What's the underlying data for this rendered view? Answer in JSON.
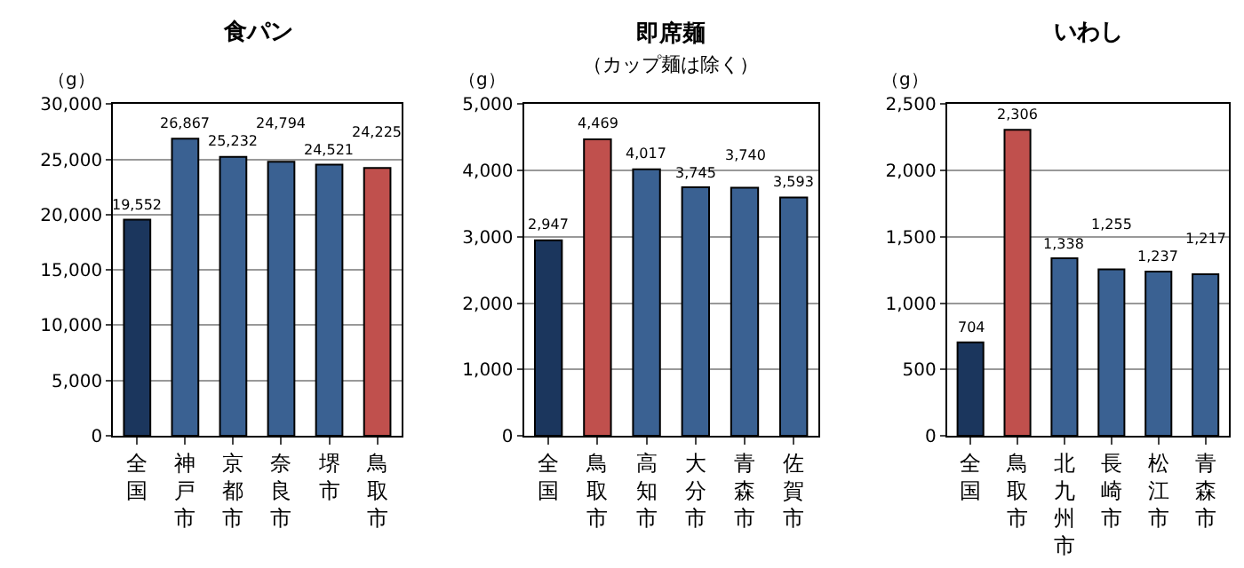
{
  "chart_data": [
    {
      "type": "bar",
      "title": "食パン",
      "ylabel": "（g）",
      "categories": [
        "全国",
        "神戸市",
        "京都市",
        "奈良市",
        "堺市",
        "鳥取市"
      ],
      "values": [
        19552,
        26867,
        25232,
        24794,
        24521,
        24225
      ],
      "value_labels": [
        "19,552",
        "26,867",
        "25,232",
        "24,794",
        "24,521",
        "24,225"
      ],
      "colors": [
        "#1b365d",
        "#3a6192",
        "#3a6192",
        "#3a6192",
        "#3a6192",
        "#c0504d"
      ],
      "ylim": [
        0,
        30000
      ],
      "yticks": [
        0,
        {
          "value": 5000,
          "label": "5,000"
        },
        {
          "value": 10000,
          "label": "10,000"
        },
        {
          "value": 15000,
          "label": "15,000"
        },
        {
          "value": 20000,
          "label": "20,000"
        },
        {
          "value": 25000,
          "label": "25,000"
        },
        {
          "value": 30000,
          "label": "30,000"
        }
      ],
      "grid": "y"
    },
    {
      "type": "bar",
      "title": "即席麺",
      "subtitle": "（カップ麺は除く）",
      "ylabel": "（g）",
      "categories": [
        "全国",
        "鳥取市",
        "高知市",
        "大分市",
        "青森市",
        "佐賀市"
      ],
      "values": [
        2947,
        4469,
        4017,
        3745,
        3740,
        3593
      ],
      "value_labels": [
        "2,947",
        "4,469",
        "4,017",
        "3,745",
        "3,740",
        "3,593"
      ],
      "colors": [
        "#1b365d",
        "#c0504d",
        "#3a6192",
        "#3a6192",
        "#3a6192",
        "#3a6192"
      ],
      "ylim": [
        0,
        5000
      ],
      "yticks": [
        0,
        {
          "value": 1000,
          "label": "1,000"
        },
        {
          "value": 2000,
          "label": "2,000"
        },
        {
          "value": 3000,
          "label": "3,000"
        },
        {
          "value": 4000,
          "label": "4,000"
        },
        {
          "value": 5000,
          "label": "5,000"
        }
      ],
      "grid": "y"
    },
    {
      "type": "bar",
      "title": "いわし",
      "ylabel": "（g）",
      "categories": [
        "全国",
        "鳥取市",
        "北九州市",
        "長崎市",
        "松江市",
        "青森市"
      ],
      "values": [
        704,
        2306,
        1338,
        1255,
        1237,
        1217
      ],
      "value_labels": [
        "704",
        "2,306",
        "1,338",
        "1,255",
        "1,237",
        "1,217"
      ],
      "colors": [
        "#1b365d",
        "#c0504d",
        "#3a6192",
        "#3a6192",
        "#3a6192",
        "#3a6192"
      ],
      "ylim": [
        0,
        2500
      ],
      "yticks": [
        0,
        500,
        {
          "value": 1000,
          "label": "1,000"
        },
        {
          "value": 1500,
          "label": "1,500"
        },
        {
          "value": 2000,
          "label": "2,000"
        },
        {
          "value": 2500,
          "label": "2,500"
        }
      ],
      "grid": "y"
    }
  ]
}
